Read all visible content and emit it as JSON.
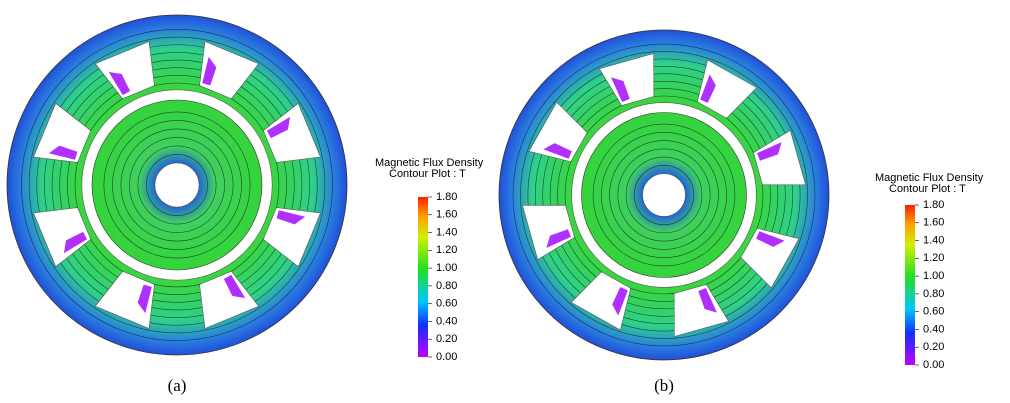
{
  "panels": [
    {
      "label": "(a)",
      "colorbar": {
        "title": [
          "Magnetic Flux Density",
          "Contour Plot : T"
        ],
        "clim": [
          0,
          1.8
        ],
        "ticks": [
          {
            "value": 1.8,
            "label": "1.80"
          },
          {
            "value": 1.6,
            "label": "1.60"
          },
          {
            "value": 1.4,
            "label": "1.40"
          },
          {
            "value": 1.2,
            "label": "1.20"
          },
          {
            "value": 1,
            "label": "1.00"
          },
          {
            "value": 0.8,
            "label": "0.80"
          },
          {
            "value": 0.6,
            "label": "0.60"
          },
          {
            "value": 0.4,
            "label": "0.40"
          },
          {
            "value": 0.2,
            "label": "0.20"
          },
          {
            "value": 0,
            "label": "0.00"
          }
        ]
      }
    },
    {
      "label": "(b)",
      "colorbar": {
        "title": [
          "Magnetic Flux Density",
          "Contour Plot : T"
        ],
        "clim": [
          0,
          1.8
        ],
        "ticks": [
          {
            "value": 1.8,
            "label": "1.80"
          },
          {
            "value": 1.6,
            "label": "1.60"
          },
          {
            "value": 1.4,
            "label": "1.40"
          },
          {
            "value": 1.2,
            "label": "1.20"
          },
          {
            "value": 1,
            "label": "1.00"
          },
          {
            "value": 0.8,
            "label": "0.80"
          },
          {
            "value": 0.6,
            "label": "0.60"
          },
          {
            "value": 0.4,
            "label": "0.40"
          },
          {
            "value": 0.2,
            "label": "0.20"
          },
          {
            "value": 0,
            "label": "0.00"
          }
        ]
      }
    }
  ]
}
